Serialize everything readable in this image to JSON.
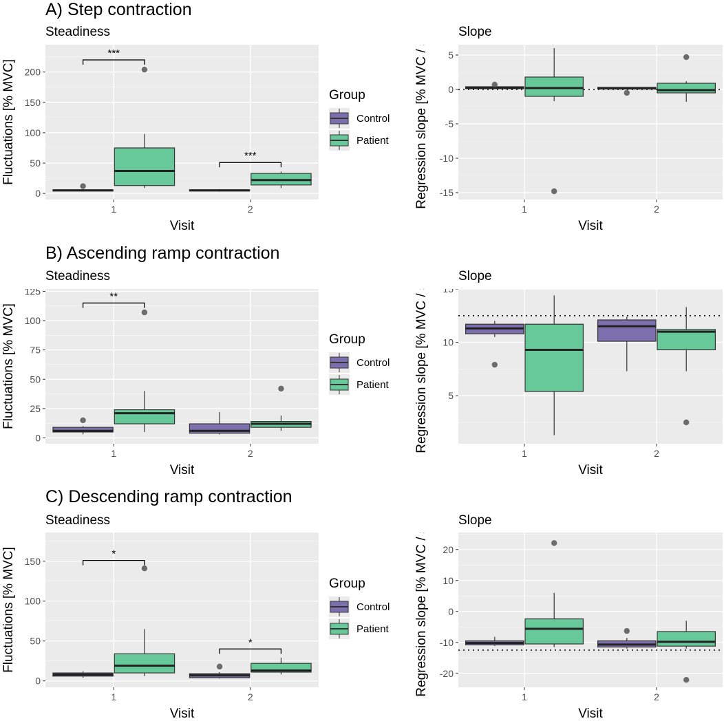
{
  "rows": [
    {
      "title": "A) Step contraction"
    },
    {
      "title": "B) Ascending ramp contraction"
    },
    {
      "title": "C) Descending ramp contraction"
    }
  ],
  "colors": {
    "control": "#7b6fad",
    "patient": "#67c99a",
    "panel_bg": "#ebebeb",
    "grid": "#ffffff"
  },
  "legend": {
    "title": "Group",
    "items": [
      {
        "label": "Control",
        "color": "#7b6fad"
      },
      {
        "label": "Patient",
        "color": "#67c99a"
      }
    ]
  },
  "chart_data": [
    {
      "id": "A-steadiness",
      "type": "boxplot",
      "title": "Steadiness",
      "xlabel": "Visit",
      "ylabel": "Fluctuations [% MVC]",
      "ylim": [
        -10,
        245
      ],
      "yticks": [
        0,
        50,
        100,
        150,
        200
      ],
      "categories": [
        "1",
        "2"
      ],
      "boxes": [
        {
          "visit": "1",
          "group": "Control",
          "min": 3,
          "q1": 4,
          "median": 5,
          "q3": 6,
          "max": 7,
          "outliers": [
            12
          ]
        },
        {
          "visit": "1",
          "group": "Patient",
          "min": 9,
          "q1": 13,
          "median": 37,
          "q3": 75,
          "max": 98,
          "outliers": [
            204
          ]
        },
        {
          "visit": "2",
          "group": "Control",
          "min": 3,
          "q1": 4,
          "median": 5,
          "q3": 6,
          "max": 7,
          "outliers": []
        },
        {
          "visit": "2",
          "group": "Patient",
          "min": 9,
          "q1": 14,
          "median": 22,
          "q3": 33,
          "max": 36,
          "outliers": []
        }
      ],
      "annotations": [
        {
          "visit": "1",
          "label": "***",
          "y": 220
        },
        {
          "visit": "2",
          "label": "***",
          "y": 51
        }
      ],
      "hline": null
    },
    {
      "id": "A-slope",
      "type": "boxplot",
      "title": "Slope",
      "xlabel": "Visit",
      "ylabel": "Regression slope [% MVC / s]",
      "ylim": [
        -16,
        6.5
      ],
      "yticks": [
        -15,
        -10,
        -5,
        0,
        5
      ],
      "categories": [
        "1",
        "2"
      ],
      "boxes": [
        {
          "visit": "1",
          "group": "Control",
          "min": 0.1,
          "q1": 0.1,
          "median": 0.25,
          "q3": 0.4,
          "max": 0.5,
          "outliers": [
            0.7
          ]
        },
        {
          "visit": "1",
          "group": "Patient",
          "min": -1.7,
          "q1": -1.0,
          "median": 0.2,
          "q3": 1.8,
          "max": 6.0,
          "outliers": [
            -14.8
          ]
        },
        {
          "visit": "2",
          "group": "Control",
          "min": 0.0,
          "q1": 0.05,
          "median": 0.15,
          "q3": 0.3,
          "max": 0.35,
          "outliers": [
            -0.5
          ]
        },
        {
          "visit": "2",
          "group": "Patient",
          "min": -1.8,
          "q1": -0.5,
          "median": -0.1,
          "q3": 0.9,
          "max": 1.2,
          "outliers": [
            4.7
          ]
        }
      ],
      "annotations": [],
      "hline": 0
    },
    {
      "id": "B-steadiness",
      "type": "boxplot",
      "title": "Steadiness",
      "xlabel": "Visit",
      "ylabel": "Fluctuations [% MVC]",
      "ylim": [
        -5,
        127
      ],
      "yticks": [
        0,
        25,
        50,
        75,
        100,
        125
      ],
      "categories": [
        "1",
        "2"
      ],
      "boxes": [
        {
          "visit": "1",
          "group": "Control",
          "min": 3,
          "q1": 5,
          "median": 6,
          "q3": 9,
          "max": 10,
          "outliers": [
            15
          ]
        },
        {
          "visit": "1",
          "group": "Patient",
          "min": 5,
          "q1": 12,
          "median": 21,
          "q3": 24,
          "max": 40,
          "outliers": [
            107
          ]
        },
        {
          "visit": "2",
          "group": "Control",
          "min": 3,
          "q1": 4,
          "median": 6,
          "q3": 12,
          "max": 22,
          "outliers": []
        },
        {
          "visit": "2",
          "group": "Patient",
          "min": 6,
          "q1": 9,
          "median": 12,
          "q3": 14,
          "max": 19,
          "outliers": [
            42
          ]
        }
      ],
      "annotations": [
        {
          "visit": "1",
          "label": "**",
          "y": 115
        }
      ],
      "hline": null
    },
    {
      "id": "B-slope",
      "type": "boxplot",
      "title": "Slope",
      "xlabel": "Visit",
      "ylabel": "Regression slope [% MVC / s]",
      "ylim": [
        0.5,
        15
      ],
      "yticks": [
        5,
        10,
        15
      ],
      "categories": [
        "1",
        "2"
      ],
      "boxes": [
        {
          "visit": "1",
          "group": "Control",
          "min": 10.5,
          "q1": 10.8,
          "median": 11.3,
          "q3": 11.7,
          "max": 12.0,
          "outliers": [
            7.9
          ]
        },
        {
          "visit": "1",
          "group": "Patient",
          "min": 1.3,
          "q1": 5.4,
          "median": 9.3,
          "q3": 11.7,
          "max": 14.4,
          "outliers": []
        },
        {
          "visit": "2",
          "group": "Control",
          "min": 7.3,
          "q1": 10.1,
          "median": 11.5,
          "q3": 12.1,
          "max": 12.4,
          "outliers": []
        },
        {
          "visit": "2",
          "group": "Patient",
          "min": 7.3,
          "q1": 9.3,
          "median": 11.0,
          "q3": 11.2,
          "max": 13.3,
          "outliers": [
            2.5
          ]
        }
      ],
      "annotations": [],
      "hline": 12.5
    },
    {
      "id": "C-steadiness",
      "type": "boxplot",
      "title": "Steadiness",
      "xlabel": "Visit",
      "ylabel": "Fluctuations [% MVC]",
      "ylim": [
        -8,
        186
      ],
      "yticks": [
        0,
        50,
        100,
        150
      ],
      "categories": [
        "1",
        "2"
      ],
      "boxes": [
        {
          "visit": "1",
          "group": "Control",
          "min": 4,
          "q1": 6,
          "median": 8,
          "q3": 10,
          "max": 12,
          "outliers": []
        },
        {
          "visit": "1",
          "group": "Patient",
          "min": 6,
          "q1": 10,
          "median": 19,
          "q3": 34,
          "max": 65,
          "outliers": [
            141
          ]
        },
        {
          "visit": "2",
          "group": "Control",
          "min": 3,
          "q1": 4,
          "median": 7,
          "q3": 9,
          "max": 11,
          "outliers": [
            18
          ]
        },
        {
          "visit": "2",
          "group": "Patient",
          "min": 8,
          "q1": 11,
          "median": 13,
          "q3": 22,
          "max": 29,
          "outliers": []
        }
      ],
      "annotations": [
        {
          "visit": "1",
          "label": "*",
          "y": 151
        },
        {
          "visit": "2",
          "label": "*",
          "y": 40
        }
      ],
      "hline": null
    },
    {
      "id": "C-slope",
      "type": "boxplot",
      "title": "Slope",
      "xlabel": "Visit",
      "ylabel": "Regression slope [% MVC / s]",
      "ylim": [
        -24.5,
        25.5
      ],
      "yticks": [
        -20,
        -10,
        0,
        10,
        20
      ],
      "categories": [
        "1",
        "2"
      ],
      "boxes": [
        {
          "visit": "1",
          "group": "Control",
          "min": -11.2,
          "q1": -10.8,
          "median": -10.2,
          "q3": -9.5,
          "max": -8.2,
          "outliers": []
        },
        {
          "visit": "1",
          "group": "Patient",
          "min": -11.5,
          "q1": -10.5,
          "median": -5.6,
          "q3": -2.4,
          "max": 6.0,
          "outliers": [
            22.1
          ]
        },
        {
          "visit": "2",
          "group": "Control",
          "min": -12.0,
          "q1": -11.5,
          "median": -10.7,
          "q3": -9.5,
          "max": -8.5,
          "outliers": [
            -6.3
          ]
        },
        {
          "visit": "2",
          "group": "Patient",
          "min": -12.0,
          "q1": -11.2,
          "median": -9.8,
          "q3": -6.5,
          "max": -3.0,
          "outliers": [
            -22.1
          ]
        }
      ],
      "annotations": [],
      "hline": -12.5
    }
  ]
}
